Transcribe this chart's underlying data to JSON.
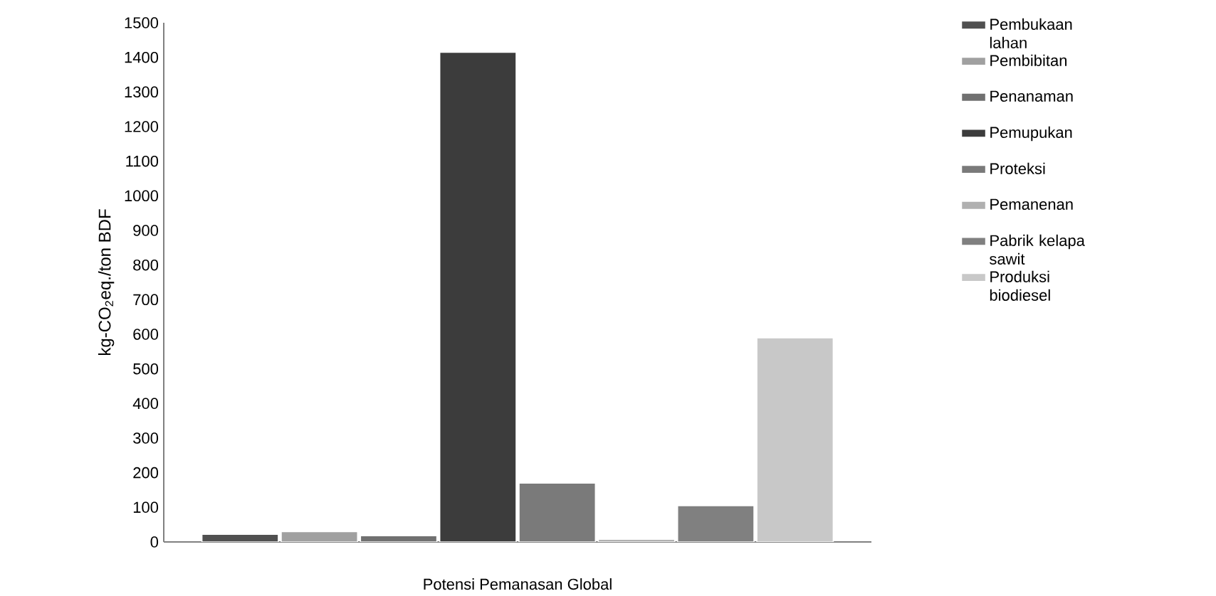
{
  "chart_data": {
    "type": "bar",
    "ylabel": "kg-CO$_{2}$eq./ton BDF",
    "categories": [
      "Potensi Pemanasan Global"
    ],
    "series": [
      {
        "name": "Pembukaan lahan",
        "color": "#505050",
        "values": [
          22
        ]
      },
      {
        "name": "Pembibitan",
        "color": "#a0a0a0",
        "values": [
          30
        ]
      },
      {
        "name": "Penanaman",
        "color": "#707070",
        "values": [
          18
        ]
      },
      {
        "name": "Pemupukan",
        "color": "#3c3c3c",
        "values": [
          1415
        ]
      },
      {
        "name": "Proteksi",
        "color": "#7a7a7a",
        "values": [
          170
        ]
      },
      {
        "name": "Pemanenan",
        "color": "#b0b0b0",
        "values": [
          8
        ]
      },
      {
        "name": "Pabrik kelapa sawit",
        "color": "#808080",
        "values": [
          105
        ]
      },
      {
        "name": "Produksi biodiesel",
        "color": "#c8c8c8",
        "values": [
          590
        ]
      }
    ],
    "ylim": [
      0,
      1500
    ],
    "yticks": [
      0,
      100,
      200,
      300,
      400,
      500,
      600,
      700,
      800,
      900,
      1000,
      1100,
      1200,
      1300,
      1400,
      1500
    ],
    "legend": "right"
  }
}
